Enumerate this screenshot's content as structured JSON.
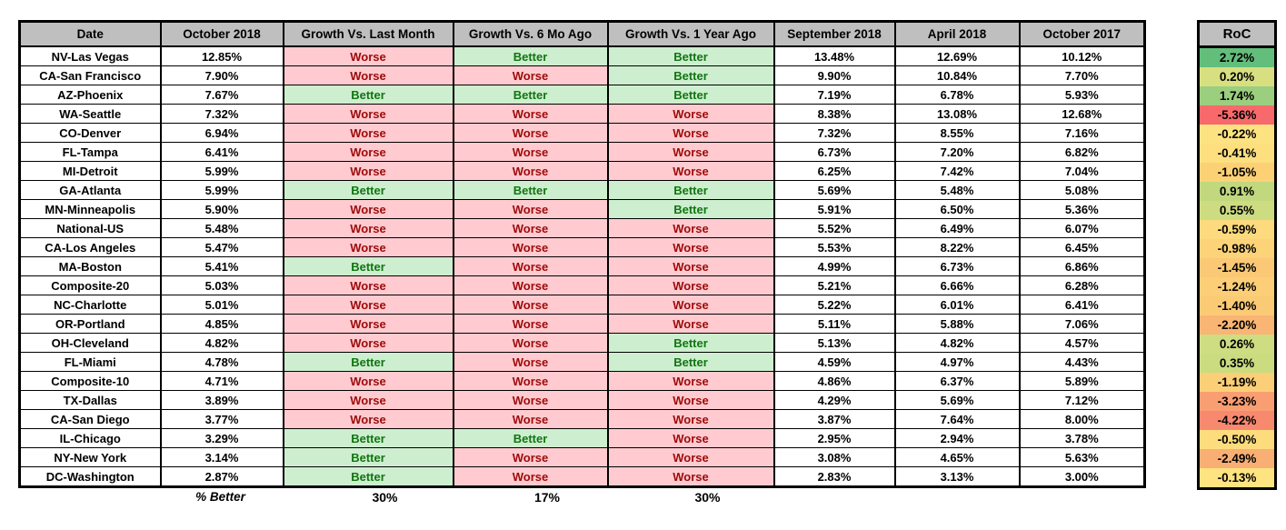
{
  "colors": {
    "header_bg": "#BFBFBF",
    "better_bg": "#CDEECF",
    "better_text": "#117511",
    "worse_bg": "#FFCBD0",
    "worse_text": "#9C0A0A"
  },
  "table": {
    "headers": [
      "Date",
      "October 2018",
      "Growth Vs. Last Month",
      "Growth Vs. 6 Mo Ago",
      "Growth Vs. 1 Year Ago",
      "September 2018",
      "April 2018",
      "October 2017"
    ],
    "rows": [
      {
        "date": "NV-Las Vegas",
        "oct_2018": "12.85%",
        "vs_last_month": "Worse",
        "vs_6mo_ago": "Better",
        "vs_1yr_ago": "Better",
        "sep_2018": "13.48%",
        "apr_2018": "12.69%",
        "oct_2017": "10.12%"
      },
      {
        "date": "CA-San Francisco",
        "oct_2018": "7.90%",
        "vs_last_month": "Worse",
        "vs_6mo_ago": "Worse",
        "vs_1yr_ago": "Better",
        "sep_2018": "9.90%",
        "apr_2018": "10.84%",
        "oct_2017": "7.70%"
      },
      {
        "date": "AZ-Phoenix",
        "oct_2018": "7.67%",
        "vs_last_month": "Better",
        "vs_6mo_ago": "Better",
        "vs_1yr_ago": "Better",
        "sep_2018": "7.19%",
        "apr_2018": "6.78%",
        "oct_2017": "5.93%"
      },
      {
        "date": "WA-Seattle",
        "oct_2018": "7.32%",
        "vs_last_month": "Worse",
        "vs_6mo_ago": "Worse",
        "vs_1yr_ago": "Worse",
        "sep_2018": "8.38%",
        "apr_2018": "13.08%",
        "oct_2017": "12.68%"
      },
      {
        "date": "CO-Denver",
        "oct_2018": "6.94%",
        "vs_last_month": "Worse",
        "vs_6mo_ago": "Worse",
        "vs_1yr_ago": "Worse",
        "sep_2018": "7.32%",
        "apr_2018": "8.55%",
        "oct_2017": "7.16%"
      },
      {
        "date": "FL-Tampa",
        "oct_2018": "6.41%",
        "vs_last_month": "Worse",
        "vs_6mo_ago": "Worse",
        "vs_1yr_ago": "Worse",
        "sep_2018": "6.73%",
        "apr_2018": "7.20%",
        "oct_2017": "6.82%"
      },
      {
        "date": "MI-Detroit",
        "oct_2018": "5.99%",
        "vs_last_month": "Worse",
        "vs_6mo_ago": "Worse",
        "vs_1yr_ago": "Worse",
        "sep_2018": "6.25%",
        "apr_2018": "7.42%",
        "oct_2017": "7.04%"
      },
      {
        "date": "GA-Atlanta",
        "oct_2018": "5.99%",
        "vs_last_month": "Better",
        "vs_6mo_ago": "Better",
        "vs_1yr_ago": "Better",
        "sep_2018": "5.69%",
        "apr_2018": "5.48%",
        "oct_2017": "5.08%"
      },
      {
        "date": "MN-Minneapolis",
        "oct_2018": "5.90%",
        "vs_last_month": "Worse",
        "vs_6mo_ago": "Worse",
        "vs_1yr_ago": "Better",
        "sep_2018": "5.91%",
        "apr_2018": "6.50%",
        "oct_2017": "5.36%"
      },
      {
        "date": "National-US",
        "oct_2018": "5.48%",
        "vs_last_month": "Worse",
        "vs_6mo_ago": "Worse",
        "vs_1yr_ago": "Worse",
        "sep_2018": "5.52%",
        "apr_2018": "6.49%",
        "oct_2017": "6.07%"
      },
      {
        "date": "CA-Los Angeles",
        "oct_2018": "5.47%",
        "vs_last_month": "Worse",
        "vs_6mo_ago": "Worse",
        "vs_1yr_ago": "Worse",
        "sep_2018": "5.53%",
        "apr_2018": "8.22%",
        "oct_2017": "6.45%"
      },
      {
        "date": "MA-Boston",
        "oct_2018": "5.41%",
        "vs_last_month": "Better",
        "vs_6mo_ago": "Worse",
        "vs_1yr_ago": "Worse",
        "sep_2018": "4.99%",
        "apr_2018": "6.73%",
        "oct_2017": "6.86%"
      },
      {
        "date": "Composite-20",
        "oct_2018": "5.03%",
        "vs_last_month": "Worse",
        "vs_6mo_ago": "Worse",
        "vs_1yr_ago": "Worse",
        "sep_2018": "5.21%",
        "apr_2018": "6.66%",
        "oct_2017": "6.28%"
      },
      {
        "date": "NC-Charlotte",
        "oct_2018": "5.01%",
        "vs_last_month": "Worse",
        "vs_6mo_ago": "Worse",
        "vs_1yr_ago": "Worse",
        "sep_2018": "5.22%",
        "apr_2018": "6.01%",
        "oct_2017": "6.41%"
      },
      {
        "date": "OR-Portland",
        "oct_2018": "4.85%",
        "vs_last_month": "Worse",
        "vs_6mo_ago": "Worse",
        "vs_1yr_ago": "Worse",
        "sep_2018": "5.11%",
        "apr_2018": "5.88%",
        "oct_2017": "7.06%"
      },
      {
        "date": "OH-Cleveland",
        "oct_2018": "4.82%",
        "vs_last_month": "Worse",
        "vs_6mo_ago": "Worse",
        "vs_1yr_ago": "Better",
        "sep_2018": "5.13%",
        "apr_2018": "4.82%",
        "oct_2017": "4.57%"
      },
      {
        "date": "FL-Miami",
        "oct_2018": "4.78%",
        "vs_last_month": "Better",
        "vs_6mo_ago": "Worse",
        "vs_1yr_ago": "Better",
        "sep_2018": "4.59%",
        "apr_2018": "4.97%",
        "oct_2017": "4.43%"
      },
      {
        "date": "Composite-10",
        "oct_2018": "4.71%",
        "vs_last_month": "Worse",
        "vs_6mo_ago": "Worse",
        "vs_1yr_ago": "Worse",
        "sep_2018": "4.86%",
        "apr_2018": "6.37%",
        "oct_2017": "5.89%"
      },
      {
        "date": "TX-Dallas",
        "oct_2018": "3.89%",
        "vs_last_month": "Worse",
        "vs_6mo_ago": "Worse",
        "vs_1yr_ago": "Worse",
        "sep_2018": "4.29%",
        "apr_2018": "5.69%",
        "oct_2017": "7.12%"
      },
      {
        "date": "CA-San Diego",
        "oct_2018": "3.77%",
        "vs_last_month": "Worse",
        "vs_6mo_ago": "Worse",
        "vs_1yr_ago": "Worse",
        "sep_2018": "3.87%",
        "apr_2018": "7.64%",
        "oct_2017": "8.00%"
      },
      {
        "date": "IL-Chicago",
        "oct_2018": "3.29%",
        "vs_last_month": "Better",
        "vs_6mo_ago": "Better",
        "vs_1yr_ago": "Worse",
        "sep_2018": "2.95%",
        "apr_2018": "2.94%",
        "oct_2017": "3.78%"
      },
      {
        "date": "NY-New York",
        "oct_2018": "3.14%",
        "vs_last_month": "Better",
        "vs_6mo_ago": "Worse",
        "vs_1yr_ago": "Worse",
        "sep_2018": "3.08%",
        "apr_2018": "4.65%",
        "oct_2017": "5.63%"
      },
      {
        "date": "DC-Washington",
        "oct_2018": "2.87%",
        "vs_last_month": "Better",
        "vs_6mo_ago": "Worse",
        "vs_1yr_ago": "Worse",
        "sep_2018": "2.83%",
        "apr_2018": "3.13%",
        "oct_2017": "3.00%"
      }
    ],
    "footer": {
      "label": "% Better",
      "vs_last_month": "30%",
      "vs_6mo_ago": "17%",
      "vs_1yr_ago": "30%"
    }
  },
  "roc": {
    "header": "RoC",
    "values": [
      {
        "value": "2.72%",
        "color": "#63BE7B"
      },
      {
        "value": "0.20%",
        "color": "#D8DF81"
      },
      {
        "value": "1.74%",
        "color": "#9BCE7E"
      },
      {
        "value": "-5.36%",
        "color": "#F8696B"
      },
      {
        "value": "-0.22%",
        "color": "#FDE282"
      },
      {
        "value": "-0.41%",
        "color": "#FDDF80"
      },
      {
        "value": "-1.05%",
        "color": "#FCD176"
      },
      {
        "value": "0.91%",
        "color": "#C1D87F"
      },
      {
        "value": "0.55%",
        "color": "#CEDC81"
      },
      {
        "value": "-0.59%",
        "color": "#FDDA7D"
      },
      {
        "value": "-0.98%",
        "color": "#FCD378"
      },
      {
        "value": "-1.45%",
        "color": "#FBC975"
      },
      {
        "value": "-1.24%",
        "color": "#FBCE77"
      },
      {
        "value": "-1.40%",
        "color": "#FBCA75"
      },
      {
        "value": "-2.20%",
        "color": "#F9B573"
      },
      {
        "value": "0.26%",
        "color": "#CEDC82"
      },
      {
        "value": "0.35%",
        "color": "#CBDB80"
      },
      {
        "value": "-1.19%",
        "color": "#FBCF77"
      },
      {
        "value": "-3.23%",
        "color": "#F89E72"
      },
      {
        "value": "-4.22%",
        "color": "#F7896F"
      },
      {
        "value": "-0.50%",
        "color": "#FDDC7E"
      },
      {
        "value": "-2.49%",
        "color": "#F9AF74"
      },
      {
        "value": "-0.13%",
        "color": "#FEE381"
      }
    ]
  }
}
